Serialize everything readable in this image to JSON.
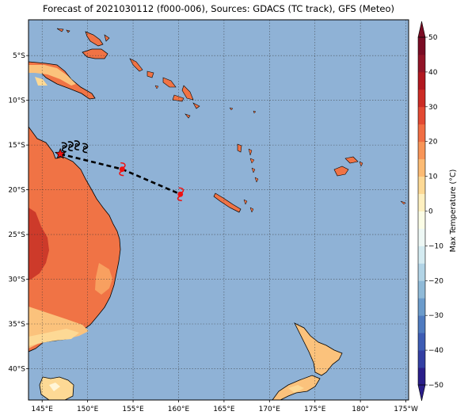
{
  "title": "Forecast of 2021030112 (f000-006), Sources: GDACS (TC track), GFS (Meteo)",
  "map": {
    "lon_range": [
      143.5,
      185.3
    ],
    "lat_range": [
      -43.5,
      -1.0
    ],
    "lon_ticks": [
      {
        "value": 145,
        "label": "145°E"
      },
      {
        "value": 150,
        "label": "150°E"
      },
      {
        "value": 155,
        "label": "155°E"
      },
      {
        "value": 160,
        "label": "160°E"
      },
      {
        "value": 165,
        "label": "165°E"
      },
      {
        "value": 170,
        "label": "170°E"
      },
      {
        "value": 175,
        "label": "175°E"
      },
      {
        "value": 180,
        "label": "180°"
      },
      {
        "value": 185,
        "label": "175°W"
      }
    ],
    "lat_ticks": [
      {
        "value": -5,
        "label": "5°S"
      },
      {
        "value": -10,
        "label": "10°S"
      },
      {
        "value": -15,
        "label": "15°S"
      },
      {
        "value": -20,
        "label": "20°S"
      },
      {
        "value": -25,
        "label": "25°S"
      },
      {
        "value": -30,
        "label": "30°S"
      },
      {
        "value": -35,
        "label": "35°S"
      },
      {
        "value": -40,
        "label": "40°S"
      }
    ],
    "ocean_color": "#8fb2d6",
    "gridlines": true,
    "track": {
      "points": [
        {
          "lon": 147.0,
          "lat": -16.0,
          "kind": "current"
        },
        {
          "lon": 153.8,
          "lat": -17.7,
          "kind": "forecast"
        },
        {
          "lon": 160.2,
          "lat": -20.5,
          "kind": "forecast"
        }
      ],
      "history_symbols": [
        {
          "lon": 147.4,
          "lat": -15.2
        },
        {
          "lon": 148.1,
          "lat": -15.1
        },
        {
          "lon": 148.8,
          "lat": -15.0
        },
        {
          "lon": 149.7,
          "lat": -15.3
        }
      ],
      "marker_color": "#ee1111"
    }
  },
  "colorbar": {
    "label": "Max Temperature (°C)",
    "min": -50,
    "max": 50,
    "step": 5,
    "tick_labels": [
      "-50",
      "-40",
      "-30",
      "-20",
      "-10",
      "0",
      "10",
      "20",
      "30",
      "40",
      "50"
    ],
    "colors": [
      "#2a1e8a",
      "#333fa3",
      "#3d5cb4",
      "#4f7bc0",
      "#6b9bcb",
      "#8fbad8",
      "#b2d4e6",
      "#d4ebf1",
      "#eef8f5",
      "#fbfde6",
      "#fef0c0",
      "#fdd995",
      "#fcbb74",
      "#f89558",
      "#f16e44",
      "#e34a33",
      "#cc2c25",
      "#b1171f",
      "#921427",
      "#7a0c24"
    ]
  }
}
